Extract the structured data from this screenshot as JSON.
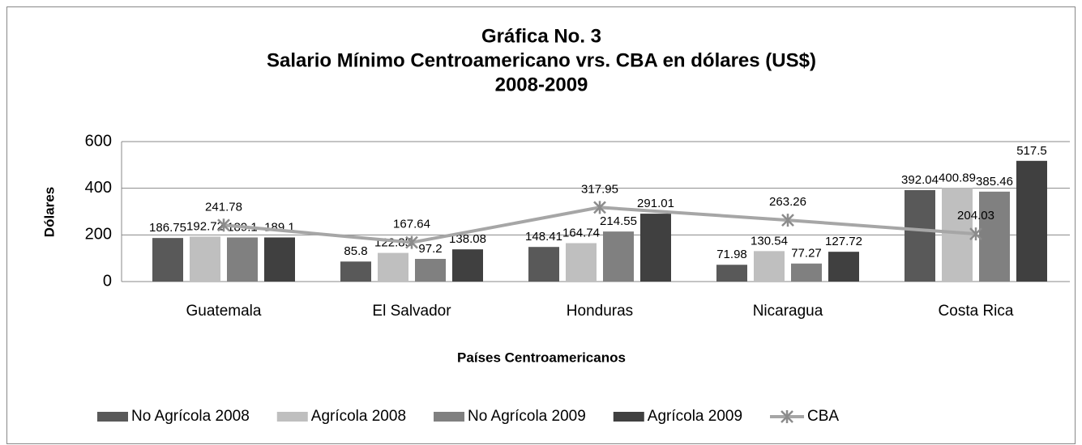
{
  "chart_data": {
    "type": "bar_line",
    "title": [
      "Gráfica No. 3",
      "Salario Mínimo Centroamericano vrs. CBA en dólares (US$)",
      "2008-2009"
    ],
    "xlabel": "Países Centroamericanos",
    "ylabel": "Dólares",
    "categories": [
      "Guatemala",
      "El Salvador",
      "Honduras",
      "Nicaragua",
      "Costa Rica"
    ],
    "series": [
      {
        "name": "No Agrícola 2008",
        "color": "#595959",
        "type": "bar",
        "values": [
          186.75,
          85.8,
          148.41,
          71.98,
          392.04
        ]
      },
      {
        "name": "Agrícola 2008",
        "color": "#bfbfbf",
        "type": "bar",
        "values": [
          192.72,
          122.85,
          164.74,
          130.54,
          400.89
        ]
      },
      {
        "name": "No Agrícola 2009",
        "color": "#808080",
        "type": "bar",
        "values": [
          189.1,
          97.2,
          214.55,
          77.27,
          385.46
        ]
      },
      {
        "name": "Agrícola 2009",
        "color": "#404040",
        "type": "bar",
        "values": [
          189.1,
          138.08,
          291.01,
          127.72,
          517.5
        ]
      },
      {
        "name": "CBA",
        "color": "#a6a6a6",
        "type": "line",
        "values": [
          241.78,
          167.64,
          317.95,
          263.26,
          204.03
        ]
      }
    ],
    "ylim": [
      0,
      600
    ],
    "yticks": [
      0,
      200,
      400,
      600
    ],
    "grid": true,
    "legend": "bottom"
  }
}
